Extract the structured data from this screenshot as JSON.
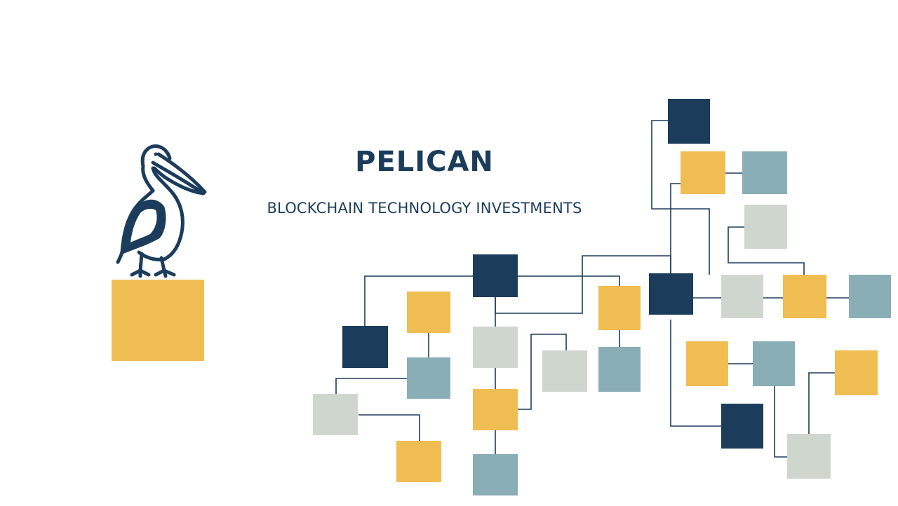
{
  "brand": {
    "name": "PELICAN",
    "tagline": "BLOCKCHAIN TECHNOLOGY INVESTMENTS"
  },
  "icons": {
    "logo": "pelican-icon",
    "graphic": "blockchain-network-diagram"
  },
  "colors": {
    "navy": "#1b3c5b",
    "gold": "#f0bd53",
    "slate": "#8aaeb6",
    "sage": "#cfd6ce",
    "background": "#ffffff"
  }
}
